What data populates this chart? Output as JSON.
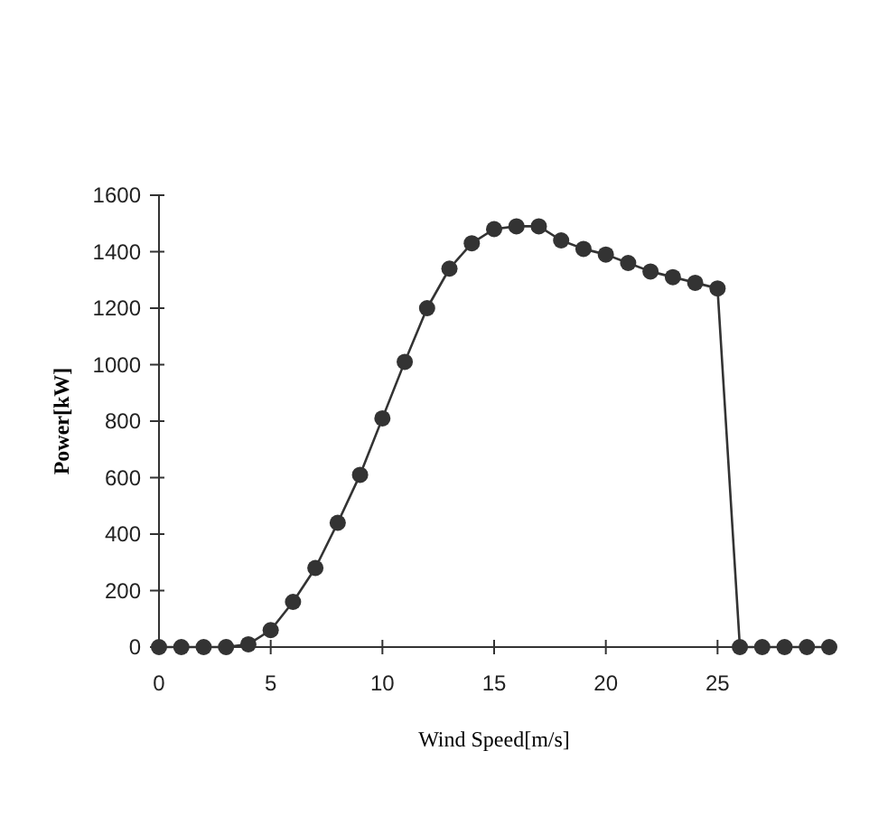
{
  "chart_data": {
    "type": "line",
    "xlabel": "Wind Speed[m/s]",
    "ylabel": "Power[kW]",
    "x": [
      0,
      1,
      2,
      3,
      4,
      5,
      6,
      7,
      8,
      9,
      10,
      11,
      12,
      13,
      14,
      15,
      16,
      17,
      18,
      19,
      20,
      21,
      22,
      23,
      24,
      25,
      26,
      27,
      28,
      29,
      30
    ],
    "series": [
      {
        "color": "#333333",
        "values": [
          0,
          0,
          0,
          0,
          10,
          60,
          160,
          280,
          440,
          610,
          810,
          1010,
          1200,
          1340,
          1430,
          1480,
          1490,
          1490,
          1440,
          1410,
          1390,
          1360,
          1330,
          1310,
          1290,
          1270,
          0,
          0,
          0,
          0,
          0
        ]
      }
    ],
    "xlim": [
      0,
      30
    ],
    "xticks": [
      0,
      5,
      10,
      15,
      20,
      25
    ],
    "ylim": [
      0,
      1600
    ],
    "yticks": [
      0,
      200,
      400,
      600,
      800,
      1000,
      1200,
      1400,
      1600
    ],
    "marker": "circle",
    "grid": false
  }
}
